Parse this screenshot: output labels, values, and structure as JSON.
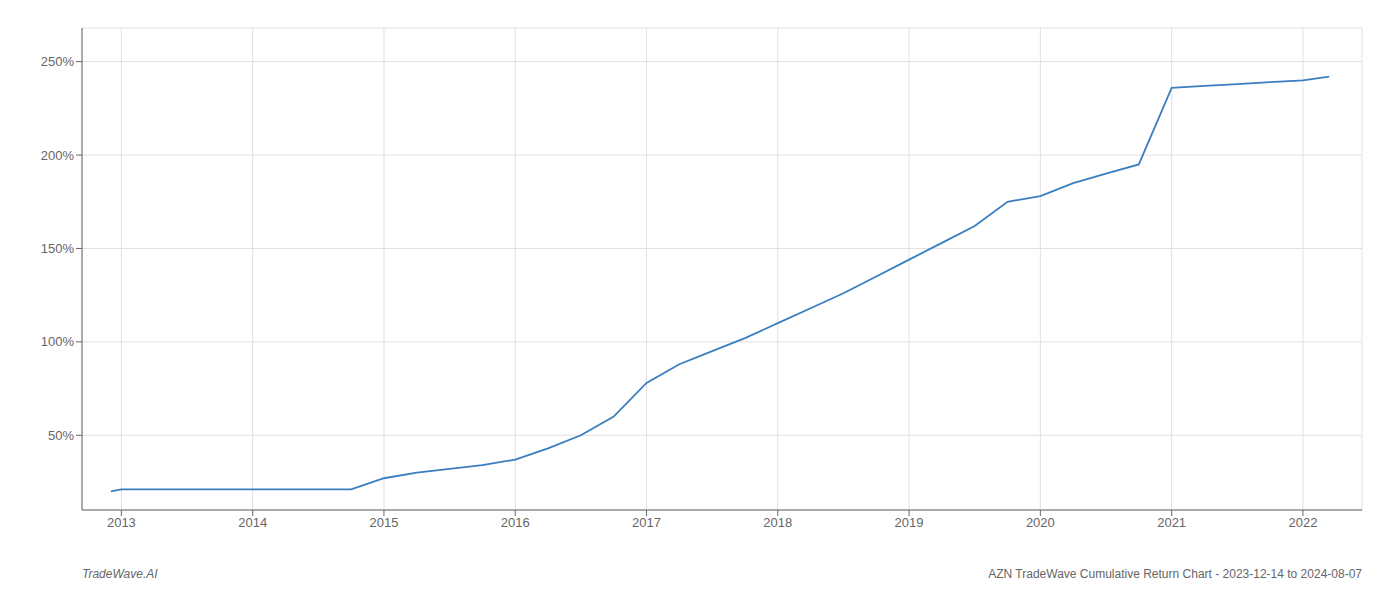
{
  "chart_data": {
    "type": "line",
    "x": [
      2012.92,
      2013.0,
      2013.25,
      2013.5,
      2013.75,
      2014.0,
      2014.25,
      2014.5,
      2014.75,
      2015.0,
      2015.25,
      2015.5,
      2015.75,
      2016.0,
      2016.25,
      2016.5,
      2016.75,
      2017.0,
      2017.25,
      2017.5,
      2017.75,
      2018.0,
      2018.25,
      2018.5,
      2018.75,
      2019.0,
      2019.25,
      2019.5,
      2019.75,
      2020.0,
      2020.25,
      2020.5,
      2020.75,
      2021.0,
      2021.25,
      2021.5,
      2021.75,
      2022.0,
      2022.2
    ],
    "values": [
      20,
      21,
      21,
      21,
      21,
      21,
      21,
      21,
      21,
      27,
      30,
      32,
      34,
      37,
      43,
      50,
      60,
      78,
      88,
      95,
      102,
      110,
      118,
      126,
      135,
      144,
      153,
      162,
      175,
      178,
      185,
      190,
      195,
      236,
      237,
      238,
      239,
      240,
      242
    ],
    "color": "#3a7ebf",
    "xlim": [
      2012.7,
      2022.45
    ],
    "xticks": [
      2013,
      2014,
      2015,
      2016,
      2017,
      2018,
      2019,
      2020,
      2021,
      2022
    ],
    "ylim": [
      10,
      268
    ],
    "yticks": [
      {
        "value": 50,
        "label": "50%"
      },
      {
        "value": 100,
        "label": "100%"
      },
      {
        "value": 150,
        "label": "150%"
      },
      {
        "value": 200,
        "label": "200%"
      },
      {
        "value": 250,
        "label": "250%"
      }
    ],
    "grid": true,
    "annotations": [
      "TradeWave.AI",
      "AZN TradeWave Cumulative Return Chart - 2023-12-14 to 2024-08-07"
    ]
  }
}
